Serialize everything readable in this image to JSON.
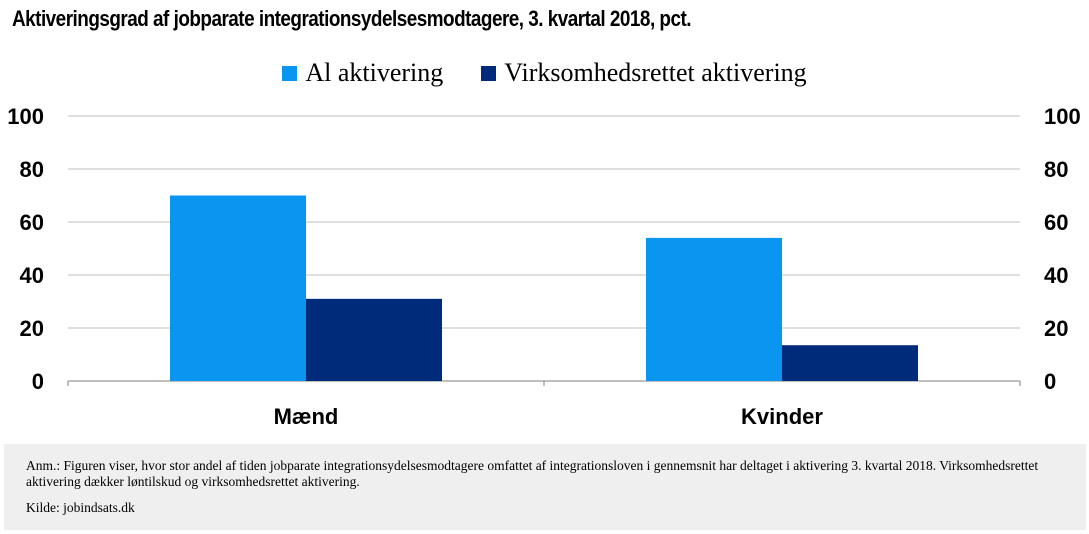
{
  "title": "Aktiveringsgrad af jobparate integrationsydelsesmodtagere, 3. kvartal 2018, pct.",
  "legend": [
    {
      "label": "Al aktivering",
      "color": "#0a96f0"
    },
    {
      "label": "Virksomhedsrettet aktivering",
      "color": "#002a7a"
    }
  ],
  "chart_data": {
    "type": "bar",
    "categories": [
      "Mænd",
      "Kvinder"
    ],
    "series": [
      {
        "name": "Al aktivering",
        "values": [
          70,
          54
        ],
        "color": "#0a96f0"
      },
      {
        "name": "Virksomhedsrettet aktivering",
        "values": [
          31,
          13.5
        ],
        "color": "#002a7a"
      }
    ],
    "ylim": [
      0,
      100
    ],
    "yticks": [
      0,
      20,
      40,
      60,
      80,
      100
    ],
    "secondary_axis": true,
    "grid": true,
    "legend_position": "top-center"
  },
  "note": {
    "text": "Anm.: Figuren viser, hvor stor andel af tiden jobparate integrationsydelsesmodtagere omfattet af integrationsloven i gennemsnit har deltaget i aktivering 3. kvartal 2018. Virksomhedsrettet aktivering dækker løntilskud og virksomhedsrettet aktivering.",
    "source": "Kilde: jobindsats.dk"
  }
}
